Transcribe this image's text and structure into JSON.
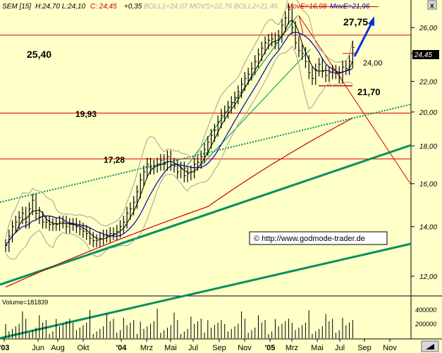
{
  "header": {
    "symbol": "SEM [15]",
    "ohlc": "H:24,70 L:24,10",
    "close_label": "C: 24,45",
    "change": "+0,35",
    "indicators_gray": "BOLL1=24,07 MOVS=22,76 BOLL2=21,46",
    "mov_red": "MovE=16,98",
    "mov_blue": "MovE=21,96",
    "close_button": "x"
  },
  "annotations": {
    "level_25_40": "25,40",
    "level_19_93": "19,93",
    "level_17_28": "17,28",
    "level_27_75": "27,75",
    "level_24_00": "24,00",
    "level_21_70": "21,70",
    "price_box": "24,45",
    "copyright": "© http://www.godmode-trader.de"
  },
  "volume_panel": {
    "label": "Volume=181839",
    "ticks": [
      "400000",
      "200000"
    ]
  },
  "colors": {
    "background": "#ffffc8",
    "price_bar": "#000000",
    "bollinger": "#a0a0a0",
    "moving_avg": "#000000",
    "ema_blue": "#0000b4",
    "ema_red": "#cc0000",
    "trend_green": "#009060",
    "horizontal_red": "#dd0000",
    "target_arrow": "#0030e0"
  },
  "chart_data": {
    "type": "line",
    "scale": "log",
    "title": "",
    "xlabel": "",
    "ylabel": "",
    "ylim": [
      11.4,
      28.4
    ],
    "yticks": [
      "12,00",
      "14,00",
      "16,00",
      "18,00",
      "20,00",
      "22,00",
      "24,00",
      "26,00"
    ],
    "yticks_values": [
      12,
      14,
      16,
      18,
      20,
      22,
      24,
      26
    ],
    "x_tick_labels": [
      "'03",
      "Jun",
      "Aug",
      "Okt",
      "'04",
      "Mrz",
      "Mai",
      "Jul",
      "Sep",
      "Nov",
      "'05",
      "Mrz",
      "Mai",
      "Jul",
      "Sep",
      "Nov"
    ],
    "grid": false,
    "series": [
      {
        "name": "",
        "values_weekly_close": [
          13.2,
          13.6,
          14.0,
          14.2,
          14.4,
          14.6,
          14.2,
          14.8,
          15.2,
          14.6,
          14.4,
          14.2,
          14.2,
          14.1,
          14.1,
          14.1,
          14.2,
          14.2,
          14.0,
          14.1,
          14.1,
          14.0,
          13.9,
          13.8,
          13.7,
          13.5,
          13.4,
          13.4,
          13.5,
          13.6,
          13.6,
          13.7,
          13.7,
          13.8,
          14.0,
          14.2,
          14.6,
          14.8,
          15.1,
          15.6,
          16.2,
          16.6,
          17.0,
          16.8,
          16.9,
          17.0,
          17.2,
          17.0,
          17.4,
          17.0,
          16.9,
          16.6,
          16.8,
          16.4,
          16.5,
          16.6,
          17.0,
          17.1,
          17.4,
          17.8,
          18.2,
          18.6,
          18.9,
          19.4,
          19.8,
          20.0,
          20.3,
          20.6,
          20.9,
          21.3,
          21.8,
          22.2,
          22.5,
          22.9,
          23.4,
          23.9,
          24.4,
          24.8,
          25.0,
          25.1,
          24.8,
          25.3,
          26.2,
          26.8,
          27.5,
          26.0,
          24.8,
          24.2,
          24.0,
          23.4,
          22.6,
          22.2,
          22.8,
          23.2,
          22.7,
          22.4,
          22.6,
          22.7,
          22.6,
          22.3,
          23.0,
          22.9,
          23.4,
          24.45
        ]
      }
    ],
    "horizontal_levels": [
      25.4,
      19.93,
      17.28,
      27.75,
      24.0,
      21.7
    ],
    "target": 27.75,
    "last_close": 24.45,
    "volume_axis": [
      "400000",
      "200000"
    ]
  }
}
